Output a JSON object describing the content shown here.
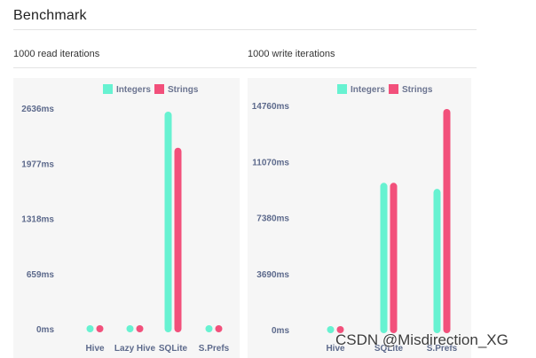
{
  "page": {
    "title": "Benchmark",
    "watermark": "CSDN @Misdirection_XG"
  },
  "colors": {
    "integers": "#67f2d1",
    "strings": "#f2507b",
    "tick_label": "#5d6a8c",
    "category_label": "#5d6a8c",
    "card_bg": "#f6f6f6"
  },
  "chart_data": [
    {
      "type": "bar",
      "section_label": "1000 read iterations",
      "categories": [
        "Hive",
        "Lazy Hive",
        "SQLite",
        "S.Prefs"
      ],
      "series": [
        {
          "name": "Integers",
          "values": [
            0,
            0,
            2636,
            0
          ]
        },
        {
          "name": "Strings",
          "values": [
            0,
            0,
            2205,
            0
          ]
        }
      ],
      "yticks": [
        "0ms",
        "659ms",
        "1318ms",
        "1977ms",
        "2636ms"
      ],
      "ylim": [
        0,
        2636
      ],
      "legend_position": "top-center",
      "grid": false
    },
    {
      "type": "bar",
      "section_label": "1000 write iterations",
      "categories": [
        "Hive",
        "SQLite",
        "S.Prefs"
      ],
      "series": [
        {
          "name": "Integers",
          "values": [
            0,
            9900,
            9500
          ]
        },
        {
          "name": "Strings",
          "values": [
            0,
            9900,
            14760
          ]
        }
      ],
      "yticks": [
        "0ms",
        "3690ms",
        "7380ms",
        "11070ms",
        "14760ms"
      ],
      "ylim": [
        0,
        14760
      ],
      "legend_position": "top-center",
      "grid": false
    }
  ]
}
